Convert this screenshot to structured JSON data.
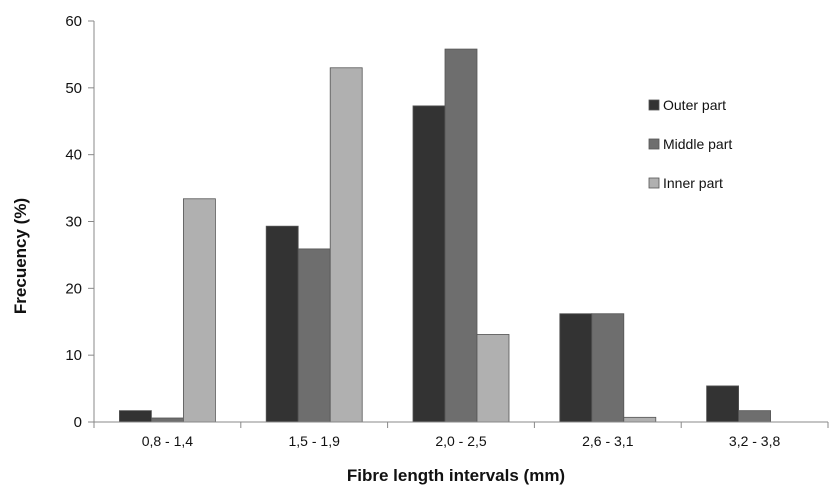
{
  "chart_data": {
    "type": "bar",
    "title": "",
    "xlabel": "Fibre length intervals (mm)",
    "ylabel": "Frecuency (%)",
    "ylim": [
      0,
      60
    ],
    "yticks": [
      "0",
      "10",
      "20",
      "30",
      "40",
      "50",
      "60"
    ],
    "categories": [
      "0,8 - 1,4",
      "1,5  - 1,9",
      "2,0 - 2,5",
      "2,6 - 3,1",
      "3,2 - 3,8"
    ],
    "series": [
      {
        "name": "Outer part",
        "color": "#333333",
        "values": [
          1.7,
          29.3,
          47.3,
          16.2,
          5.4
        ]
      },
      {
        "name": "Middle part",
        "color": "#6e6e6e",
        "values": [
          0.6,
          25.9,
          55.8,
          16.2,
          1.7
        ]
      },
      {
        "name": "Inner part",
        "color": "#b0b0b0",
        "values": [
          33.4,
          53.0,
          13.1,
          0.7,
          0
        ]
      }
    ],
    "grid": false,
    "legend_position": "right"
  }
}
